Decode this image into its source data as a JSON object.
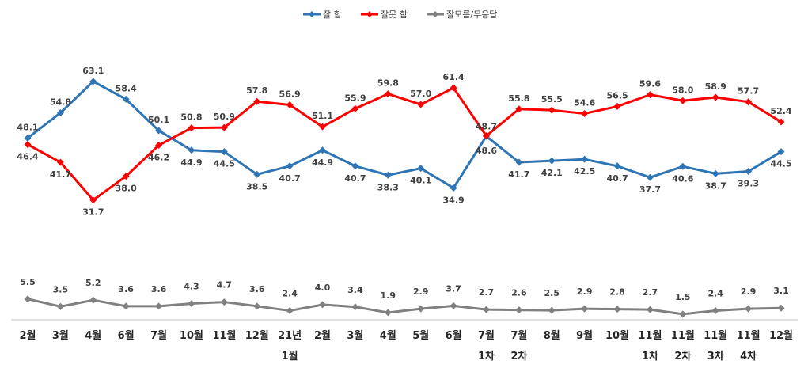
{
  "chart_data": {
    "type": "line",
    "title": "",
    "xlabel": "",
    "ylabel": "",
    "categories": [
      [
        "2월"
      ],
      [
        "3월"
      ],
      [
        "4월"
      ],
      [
        "6월"
      ],
      [
        "7월"
      ],
      [
        "10월"
      ],
      [
        "11월"
      ],
      [
        "12월"
      ],
      [
        "21년",
        "1월"
      ],
      [
        "2월"
      ],
      [
        "3월"
      ],
      [
        "4월"
      ],
      [
        "5월"
      ],
      [
        "6월"
      ],
      [
        "7월",
        "1차"
      ],
      [
        "7월",
        "2차"
      ],
      [
        "8월"
      ],
      [
        "9월"
      ],
      [
        "10월"
      ],
      [
        "11월",
        "1차"
      ],
      [
        "11월",
        "2차"
      ],
      [
        "11월",
        "3차"
      ],
      [
        "11월",
        "4차"
      ],
      [
        "12월"
      ]
    ],
    "series": [
      {
        "name": "잘 함",
        "color": "#2E75B6",
        "marker": "diamond",
        "values": [
          48.1,
          54.8,
          63.1,
          58.4,
          50.1,
          44.9,
          44.5,
          38.5,
          40.7,
          44.9,
          40.7,
          38.3,
          40.1,
          34.9,
          48.6,
          41.7,
          42.1,
          42.5,
          40.7,
          37.7,
          40.6,
          38.7,
          39.3,
          44.5
        ]
      },
      {
        "name": "잘못 함",
        "color": "#FF0000",
        "marker": "diamond",
        "values": [
          46.4,
          41.7,
          31.7,
          38.0,
          46.2,
          50.8,
          50.9,
          57.8,
          56.9,
          51.1,
          55.9,
          59.8,
          57.0,
          61.4,
          48.7,
          55.8,
          55.5,
          54.6,
          56.5,
          59.6,
          58.0,
          58.9,
          57.7,
          52.4
        ]
      },
      {
        "name": "잘모름/무응답",
        "color": "#808080",
        "marker": "diamond",
        "values": [
          5.5,
          3.5,
          5.2,
          3.6,
          3.6,
          4.3,
          4.7,
          3.6,
          2.4,
          4.0,
          3.4,
          1.9,
          2.9,
          3.7,
          2.7,
          2.6,
          2.5,
          2.9,
          2.8,
          2.7,
          1.5,
          2.4,
          2.9,
          3.1
        ]
      }
    ],
    "ylim": [
      0,
      70
    ],
    "grid": false,
    "legend_position": "top-center",
    "baseline": true
  }
}
